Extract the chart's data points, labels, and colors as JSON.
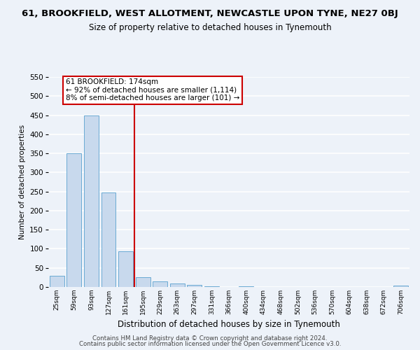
{
  "title": "61, BROOKFIELD, WEST ALLOTMENT, NEWCASTLE UPON TYNE, NE27 0BJ",
  "subtitle": "Size of property relative to detached houses in Tynemouth",
  "xlabel": "Distribution of detached houses by size in Tynemouth",
  "ylabel": "Number of detached properties",
  "bar_labels": [
    "25sqm",
    "59sqm",
    "93sqm",
    "127sqm",
    "161sqm",
    "195sqm",
    "229sqm",
    "263sqm",
    "297sqm",
    "331sqm",
    "366sqm",
    "400sqm",
    "434sqm",
    "468sqm",
    "502sqm",
    "536sqm",
    "570sqm",
    "604sqm",
    "638sqm",
    "672sqm",
    "706sqm"
  ],
  "bar_values": [
    30,
    350,
    450,
    248,
    94,
    26,
    15,
    10,
    5,
    1,
    0,
    2,
    0,
    0,
    0,
    0,
    0,
    0,
    0,
    0,
    4
  ],
  "bar_fill": "#c8d9ed",
  "bar_edge": "#6aaad4",
  "vline_x_index": 4.5,
  "vline_color": "#cc0000",
  "annotation_line1": "61 BROOKFIELD: 174sqm",
  "annotation_line2": "← 92% of detached houses are smaller (1,114)",
  "annotation_line3": "8% of semi-detached houses are larger (101) →",
  "annotation_box_color": "#ffffff",
  "annotation_box_edge": "#cc0000",
  "ylim": [
    0,
    550
  ],
  "yticks": [
    0,
    50,
    100,
    150,
    200,
    250,
    300,
    350,
    400,
    450,
    500,
    550
  ],
  "footer1": "Contains HM Land Registry data © Crown copyright and database right 2024.",
  "footer2": "Contains public sector information licensed under the Open Government Licence v3.0.",
  "bg_color": "#edf2f9",
  "plot_bg": "#edf2f9",
  "grid_color": "#ffffff"
}
